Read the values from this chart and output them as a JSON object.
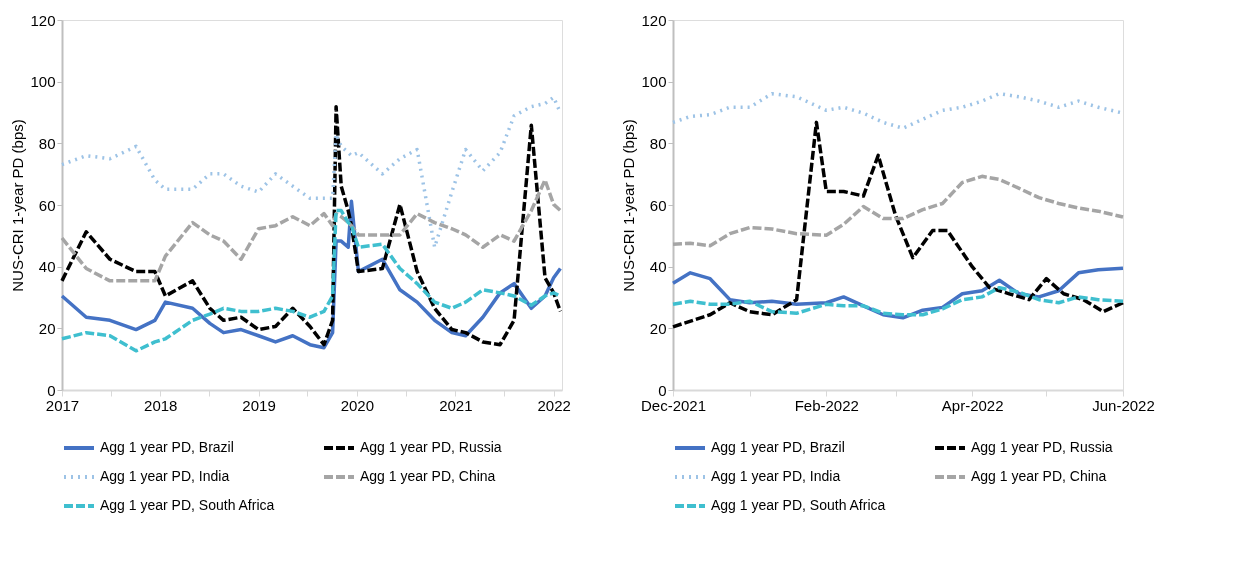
{
  "chart_data": [
    {
      "type": "line",
      "ylabel": "NUS-CRI 1-year PD (bps)",
      "ylim": [
        0,
        120
      ],
      "yticks": [
        0,
        20,
        40,
        60,
        80,
        100,
        120
      ],
      "xlim": [
        "2017-01-01",
        "2022-02-01"
      ],
      "xticks": [
        {
          "value": "2017-01-01",
          "label": "2017"
        },
        {
          "value": "2017-07-01",
          "label": null
        },
        {
          "value": "2018-01-01",
          "label": "2018"
        },
        {
          "value": "2018-07-01",
          "label": null
        },
        {
          "value": "2019-01-01",
          "label": "2019"
        },
        {
          "value": "2019-07-01",
          "label": null
        },
        {
          "value": "2020-01-01",
          "label": "2020"
        },
        {
          "value": "2020-07-01",
          "label": null
        },
        {
          "value": "2021-01-01",
          "label": "2021"
        },
        {
          "value": "2021-07-01",
          "label": null
        },
        {
          "value": "2022-01-01",
          "label": "2022"
        }
      ],
      "x": [
        "2017-01-01",
        "2017-04-01",
        "2017-06-28",
        "2017-10-03",
        "2017-12-12",
        "2018-01-20",
        "2018-05-01",
        "2018-07-04",
        "2018-08-24",
        "2018-10-28",
        "2019-01-01",
        "2019-03-05",
        "2019-05-08",
        "2019-07-11",
        "2019-09-01",
        "2019-10-03",
        "2019-10-16",
        "2019-11-04",
        "2019-11-30",
        "2019-12-12",
        "2020-01-07",
        "2020-04-05",
        "2020-06-09",
        "2020-08-12",
        "2020-10-16",
        "2020-12-19",
        "2021-02-08",
        "2021-04-13",
        "2021-06-16",
        "2021-08-07",
        "2021-10-10",
        "2021-11-30",
        "2022-01-01",
        "2022-01-26"
      ],
      "series": [
        {
          "name": "Agg 1 year PD, Brazil",
          "color": "#4472c4",
          "line_style": "solid",
          "values": [
            30.5,
            23.6,
            22.6,
            19.6,
            22.6,
            28.5,
            26.5,
            21.6,
            18.6,
            19.6,
            17.6,
            15.6,
            17.6,
            14.7,
            13.7,
            18.6,
            48.3,
            48.3,
            46.3,
            61.2,
            38.4,
            42.4,
            32.5,
            28.5,
            22.6,
            18.6,
            17.6,
            23.6,
            31.5,
            34.5,
            26.5,
            30.5,
            36.4,
            39.4
          ]
        },
        {
          "name": "Agg 1 year PD, Russia",
          "color": "#000000",
          "line_style": "dashed",
          "values": [
            35.4,
            51.3,
            42.4,
            38.4,
            38.4,
            30.5,
            35.4,
            26.5,
            22.6,
            23.6,
            19.6,
            20.6,
            26.5,
            20.6,
            14.7,
            22.6,
            91.9,
            66.1,
            58.2,
            53.3,
            38.4,
            39.4,
            60.2,
            38.4,
            26.5,
            19.6,
            18.6,
            15.6,
            14.7,
            22.6,
            85.9,
            36.4,
            31.5,
            25.5
          ]
        },
        {
          "name": "Agg 1 year PD, India",
          "color": "#9dc3e6",
          "line_style": "dotted",
          "values": [
            73.1,
            76,
            75,
            79,
            68.1,
            65.1,
            65.1,
            70.1,
            70.1,
            66.1,
            64.2,
            70.1,
            66.1,
            62.2,
            62.2,
            62.2,
            83,
            79,
            77,
            76,
            77,
            70.1,
            75,
            78,
            46.3,
            64.2,
            78,
            71.1,
            77,
            88.9,
            91.9,
            92.9,
            94.9,
            89.9
          ]
        },
        {
          "name": "Agg 1 year PD, China",
          "color": "#a5a5a5",
          "line_style": "dashed",
          "values": [
            49.3,
            39.4,
            35.4,
            35.4,
            35.4,
            43.4,
            54.3,
            50.3,
            48.3,
            42.4,
            52.3,
            53.3,
            56.2,
            53.3,
            57.2,
            53.3,
            57.2,
            56.2,
            54.3,
            53.3,
            50.3,
            50.3,
            50.3,
            57.2,
            54.3,
            52.3,
            50.3,
            46.3,
            50.3,
            48.3,
            58.2,
            68.1,
            60.2,
            58.2
          ]
        },
        {
          "name": "Agg 1 year PD, South Africa",
          "color": "#3fbfcf",
          "line_style": "dashed",
          "values": [
            16.6,
            18.6,
            17.6,
            12.7,
            15.6,
            16.6,
            22.6,
            24.6,
            26.5,
            25.5,
            25.5,
            26.5,
            25.5,
            23.6,
            25.5,
            30.5,
            58.2,
            58.2,
            54.3,
            53.3,
            46.3,
            47.3,
            39.4,
            34.5,
            28.5,
            26.5,
            28.5,
            32.5,
            31.5,
            30.5,
            27.5,
            30.5,
            31.5,
            30.5
          ]
        }
      ],
      "legend": "bottom",
      "grid": false,
      "marker": "none"
    },
    {
      "type": "line",
      "ylabel": "NUS-CRI 1-year PD (bps)",
      "ylim": [
        0,
        120
      ],
      "yticks": [
        0,
        20,
        40,
        60,
        80,
        100,
        120
      ],
      "xlim": [
        "2021-12-01",
        "2022-06-01"
      ],
      "xticks": [
        {
          "value": "2021-12-01",
          "label": "Dec-2021"
        },
        {
          "value": "2022-01-01",
          "label": null
        },
        {
          "value": "2022-02-01",
          "label": "Feb-2022"
        },
        {
          "value": "2022-03-01",
          "label": null
        },
        {
          "value": "2022-04-01",
          "label": "Apr-2022"
        },
        {
          "value": "2022-05-01",
          "label": null
        },
        {
          "value": "2022-06-01",
          "label": "Jun-2022"
        }
      ],
      "x": [
        "2021-12-01",
        "2021-12-08",
        "2021-12-16",
        "2021-12-24",
        "2022-01-01",
        "2022-01-10",
        "2022-01-20",
        "2022-02-01",
        "2022-02-08",
        "2022-02-16",
        "2022-02-24",
        "2022-03-04",
        "2022-03-12",
        "2022-03-20",
        "2022-03-28",
        "2022-04-05",
        "2022-04-12",
        "2022-04-20",
        "2022-04-28",
        "2022-05-06",
        "2022-05-14",
        "2022-05-22",
        "2022-06-01"
      ],
      "series": [
        {
          "name": "Agg 1 year PD, Brazil",
          "color": "#4472c4",
          "line_style": "solid",
          "values": [
            34.6,
            38,
            36.1,
            29.3,
            28.3,
            28.8,
            27.8,
            28.3,
            30.2,
            27.3,
            24.4,
            23.4,
            25.9,
            26.8,
            31.2,
            32.2,
            35.6,
            31.2,
            30.2,
            32.2,
            38,
            39,
            39.5
          ]
        },
        {
          "name": "Agg 1 year PD, Russia",
          "color": "#000000",
          "line_style": "dashed",
          "x": [
            "2021-12-01",
            "2021-12-16",
            "2021-12-24",
            "2022-01-01",
            "2022-01-10",
            "2022-01-20",
            "2022-01-28",
            "2022-02-01",
            "2022-02-08",
            "2022-02-16",
            "2022-02-22",
            "2022-03-01",
            "2022-03-08",
            "2022-03-16",
            "2022-03-22",
            "2022-04-01",
            "2022-04-08",
            "2022-04-16",
            "2022-04-24",
            "2022-05-01",
            "2022-05-08",
            "2022-05-16",
            "2022-05-24",
            "2022-06-01"
          ],
          "values": [
            20.5,
            24.4,
            28.3,
            25.4,
            24.4,
            29.3,
            86.8,
            64.4,
            64.4,
            62.9,
            76.1,
            56.6,
            42.9,
            51.7,
            51.7,
            40,
            33.2,
            31.2,
            29.3,
            36.1,
            31.2,
            29.3,
            25.4,
            28.3
          ]
        },
        {
          "name": "Agg 1 year PD, India",
          "color": "#9dc3e6",
          "line_style": "dotted",
          "values": [
            86.8,
            88.7,
            89.3,
            91.7,
            91.7,
            96.1,
            95.1,
            90.7,
            91.7,
            89.8,
            86.8,
            84.9,
            87.8,
            90.7,
            91.7,
            93.7,
            96.1,
            95.1,
            93.7,
            91.7,
            93.7,
            91.7,
            89.8
          ]
        },
        {
          "name": "Agg 1 year PD, China",
          "color": "#a5a5a5",
          "line_style": "dashed",
          "values": [
            47.3,
            47.6,
            46.8,
            50.7,
            52.7,
            52.2,
            50.7,
            50.2,
            53.7,
            59.5,
            55.6,
            55.6,
            58.5,
            60.5,
            67.3,
            69.3,
            68.3,
            65.4,
            62.4,
            60.5,
            59,
            58,
            56.1
          ]
        },
        {
          "name": "Agg 1 year PD, South Africa",
          "color": "#3fbfcf",
          "line_style": "dashed",
          "values": [
            27.8,
            28.8,
            27.8,
            27.8,
            28.8,
            25.4,
            24.9,
            27.8,
            27.3,
            27.3,
            24.9,
            24.4,
            24.4,
            26.3,
            29.3,
            30.2,
            33.2,
            31.7,
            29.3,
            28.3,
            30.2,
            29.3,
            28.8
          ]
        }
      ],
      "legend": "bottom",
      "grid": false,
      "marker": "none"
    }
  ]
}
